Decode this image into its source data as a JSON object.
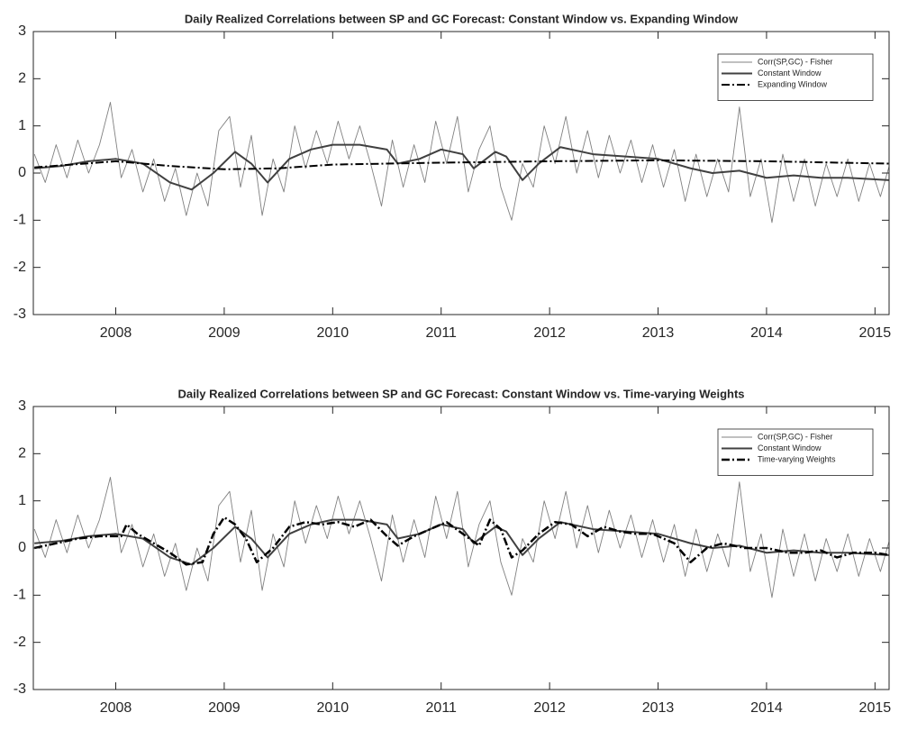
{
  "chart_data": [
    {
      "type": "line",
      "title": "Daily Realized Correlations between SP and GC Forecast: Constant Window vs. Expanding Window",
      "xlim": [
        2007.24,
        2015.13
      ],
      "xticks": [
        2008,
        2009,
        2010,
        2011,
        2012,
        2013,
        2014,
        2015
      ],
      "ylim": [
        -3,
        3
      ],
      "yticks": [
        -3,
        -2,
        -1,
        0,
        1,
        2,
        3
      ],
      "legend": "upper right",
      "series": [
        {
          "name": "Corr(SP,GC) - Fisher",
          "color": "#808080",
          "style": "solid",
          "width": 0.9,
          "x": [
            2007.25,
            2007.35,
            2007.45,
            2007.55,
            2007.65,
            2007.75,
            2007.85,
            2007.95,
            2008.05,
            2008.15,
            2008.25,
            2008.35,
            2008.45,
            2008.55,
            2008.65,
            2008.75,
            2008.85,
            2008.95,
            2009.05,
            2009.15,
            2009.25,
            2009.35,
            2009.45,
            2009.55,
            2009.65,
            2009.75,
            2009.85,
            2009.95,
            2010.05,
            2010.15,
            2010.25,
            2010.35,
            2010.45,
            2010.55,
            2010.65,
            2010.75,
            2010.85,
            2010.95,
            2011.05,
            2011.15,
            2011.25,
            2011.35,
            2011.45,
            2011.55,
            2011.65,
            2011.75,
            2011.85,
            2011.95,
            2012.05,
            2012.15,
            2012.25,
            2012.35,
            2012.45,
            2012.55,
            2012.65,
            2012.75,
            2012.85,
            2012.95,
            2013.05,
            2013.15,
            2013.25,
            2013.35,
            2013.45,
            2013.55,
            2013.65,
            2013.75,
            2013.85,
            2013.95,
            2014.05,
            2014.15,
            2014.25,
            2014.35,
            2014.45,
            2014.55,
            2014.65,
            2014.75,
            2014.85,
            2014.95,
            2015.05,
            2015.15
          ],
          "values": [
            0.4,
            -0.2,
            0.6,
            -0.1,
            0.7,
            0.0,
            0.6,
            1.5,
            -0.1,
            0.5,
            -0.4,
            0.3,
            -0.6,
            0.1,
            -0.9,
            0.0,
            -0.7,
            0.9,
            1.2,
            -0.3,
            0.8,
            -0.9,
            0.3,
            -0.4,
            1.0,
            0.1,
            0.9,
            0.2,
            1.1,
            0.3,
            1.0,
            0.2,
            -0.7,
            0.7,
            -0.3,
            0.6,
            -0.2,
            1.1,
            0.2,
            1.2,
            -0.4,
            0.5,
            1.0,
            -0.3,
            -1.0,
            0.2,
            -0.3,
            1.0,
            0.2,
            1.2,
            0.0,
            0.9,
            -0.1,
            0.8,
            0.0,
            0.7,
            -0.2,
            0.6,
            -0.3,
            0.5,
            -0.6,
            0.4,
            -0.5,
            0.3,
            -0.4,
            1.4,
            -0.5,
            0.3,
            -1.05,
            0.4,
            -0.6,
            0.3,
            -0.7,
            0.2,
            -0.5,
            0.3,
            -0.6,
            0.2,
            -0.5,
            0.3
          ]
        },
        {
          "name": "Constant Window",
          "color": "#404040",
          "style": "solid",
          "width": 2,
          "x": [
            2007.25,
            2007.5,
            2007.75,
            2008,
            2008.25,
            2008.5,
            2008.7,
            2008.9,
            2009.1,
            2009.25,
            2009.4,
            2009.6,
            2009.8,
            2010,
            2010.25,
            2010.5,
            2010.6,
            2010.8,
            2011,
            2011.2,
            2011.3,
            2011.5,
            2011.6,
            2011.75,
            2011.9,
            2012.1,
            2012.4,
            2012.7,
            2013,
            2013.3,
            2013.5,
            2013.75,
            2014,
            2014.25,
            2014.5,
            2014.75,
            2015.13
          ],
          "values": [
            0.1,
            0.15,
            0.25,
            0.3,
            0.2,
            -0.2,
            -0.35,
            0.0,
            0.45,
            0.2,
            -0.2,
            0.3,
            0.5,
            0.6,
            0.6,
            0.5,
            0.2,
            0.3,
            0.5,
            0.4,
            0.1,
            0.45,
            0.35,
            -0.15,
            0.2,
            0.55,
            0.4,
            0.35,
            0.3,
            0.1,
            0.0,
            0.05,
            -0.1,
            -0.05,
            -0.1,
            -0.1,
            -0.15
          ]
        },
        {
          "name": "Expanding Window",
          "color": "#000000",
          "style": "dashdot",
          "width": 2,
          "x": [
            2007.25,
            2008,
            2008.5,
            2009,
            2009.5,
            2010,
            2011,
            2012,
            2013,
            2014,
            2015.13
          ],
          "values": [
            0.12,
            0.25,
            0.15,
            0.08,
            0.1,
            0.18,
            0.22,
            0.25,
            0.27,
            0.25,
            0.2
          ]
        }
      ]
    },
    {
      "type": "line",
      "title": "Daily Realized Correlations between SP and GC Forecast: Constant Window vs. Time-varying Weights",
      "xlim": [
        2007.24,
        2015.13
      ],
      "xticks": [
        2008,
        2009,
        2010,
        2011,
        2012,
        2013,
        2014,
        2015
      ],
      "ylim": [
        -3,
        3
      ],
      "yticks": [
        -3,
        -2,
        -1,
        0,
        1,
        2,
        3
      ],
      "legend": "upper right",
      "series": [
        {
          "name": "Corr(SP,GC) - Fisher",
          "color": "#808080",
          "style": "solid",
          "width": 0.9,
          "x": [
            2007.25,
            2007.35,
            2007.45,
            2007.55,
            2007.65,
            2007.75,
            2007.85,
            2007.95,
            2008.05,
            2008.15,
            2008.25,
            2008.35,
            2008.45,
            2008.55,
            2008.65,
            2008.75,
            2008.85,
            2008.95,
            2009.05,
            2009.15,
            2009.25,
            2009.35,
            2009.45,
            2009.55,
            2009.65,
            2009.75,
            2009.85,
            2009.95,
            2010.05,
            2010.15,
            2010.25,
            2010.35,
            2010.45,
            2010.55,
            2010.65,
            2010.75,
            2010.85,
            2010.95,
            2011.05,
            2011.15,
            2011.25,
            2011.35,
            2011.45,
            2011.55,
            2011.65,
            2011.75,
            2011.85,
            2011.95,
            2012.05,
            2012.15,
            2012.25,
            2012.35,
            2012.45,
            2012.55,
            2012.65,
            2012.75,
            2012.85,
            2012.95,
            2013.05,
            2013.15,
            2013.25,
            2013.35,
            2013.45,
            2013.55,
            2013.65,
            2013.75,
            2013.85,
            2013.95,
            2014.05,
            2014.15,
            2014.25,
            2014.35,
            2014.45,
            2014.55,
            2014.65,
            2014.75,
            2014.85,
            2014.95,
            2015.05,
            2015.15
          ],
          "values": [
            0.4,
            -0.2,
            0.6,
            -0.1,
            0.7,
            0.0,
            0.6,
            1.5,
            -0.1,
            0.5,
            -0.4,
            0.3,
            -0.6,
            0.1,
            -0.9,
            0.0,
            -0.7,
            0.9,
            1.2,
            -0.3,
            0.8,
            -0.9,
            0.3,
            -0.4,
            1.0,
            0.1,
            0.9,
            0.2,
            1.1,
            0.3,
            1.0,
            0.2,
            -0.7,
            0.7,
            -0.3,
            0.6,
            -0.2,
            1.1,
            0.2,
            1.2,
            -0.4,
            0.5,
            1.0,
            -0.3,
            -1.0,
            0.2,
            -0.3,
            1.0,
            0.2,
            1.2,
            0.0,
            0.9,
            -0.1,
            0.8,
            0.0,
            0.7,
            -0.2,
            0.6,
            -0.3,
            0.5,
            -0.6,
            0.4,
            -0.5,
            0.3,
            -0.4,
            1.4,
            -0.5,
            0.3,
            -1.05,
            0.4,
            -0.6,
            0.3,
            -0.7,
            0.2,
            -0.5,
            0.3,
            -0.6,
            0.2,
            -0.5,
            0.3
          ]
        },
        {
          "name": "Constant Window",
          "color": "#404040",
          "style": "solid",
          "width": 2,
          "x": [
            2007.25,
            2007.5,
            2007.75,
            2008,
            2008.25,
            2008.5,
            2008.7,
            2008.9,
            2009.1,
            2009.25,
            2009.4,
            2009.6,
            2009.8,
            2010,
            2010.25,
            2010.5,
            2010.6,
            2010.8,
            2011,
            2011.2,
            2011.3,
            2011.5,
            2011.6,
            2011.75,
            2011.9,
            2012.1,
            2012.4,
            2012.7,
            2013,
            2013.3,
            2013.5,
            2013.75,
            2014,
            2014.25,
            2014.5,
            2014.75,
            2015.13
          ],
          "values": [
            0.1,
            0.15,
            0.25,
            0.3,
            0.2,
            -0.2,
            -0.35,
            0.0,
            0.45,
            0.2,
            -0.2,
            0.3,
            0.5,
            0.6,
            0.6,
            0.5,
            0.2,
            0.3,
            0.5,
            0.4,
            0.1,
            0.45,
            0.35,
            -0.15,
            0.2,
            0.55,
            0.4,
            0.35,
            0.3,
            0.1,
            0.0,
            0.05,
            -0.1,
            -0.05,
            -0.1,
            -0.1,
            -0.15
          ]
        },
        {
          "name": "Time-varying Weights",
          "color": "#000000",
          "style": "dashdot",
          "width": 2.5,
          "x": [
            2007.25,
            2007.45,
            2007.65,
            2007.85,
            2008.05,
            2008.1,
            2008.2,
            2008.35,
            2008.5,
            2008.65,
            2008.8,
            2008.9,
            2009.0,
            2009.1,
            2009.2,
            2009.3,
            2009.45,
            2009.6,
            2009.75,
            2009.9,
            2010.05,
            2010.2,
            2010.35,
            2010.5,
            2010.6,
            2010.75,
            2010.9,
            2011.05,
            2011.2,
            2011.35,
            2011.45,
            2011.55,
            2011.65,
            2011.75,
            2011.9,
            2012.05,
            2012.2,
            2012.35,
            2012.5,
            2012.65,
            2012.8,
            2012.95,
            2013.15,
            2013.3,
            2013.45,
            2013.6,
            2013.8,
            2014.0,
            2014.2,
            2014.35,
            2014.5,
            2014.65,
            2014.8,
            2015.0,
            2015.13
          ],
          "values": [
            0.0,
            0.1,
            0.2,
            0.25,
            0.25,
            0.5,
            0.3,
            0.1,
            -0.1,
            -0.35,
            -0.3,
            0.3,
            0.65,
            0.5,
            0.2,
            -0.3,
            0.0,
            0.45,
            0.55,
            0.5,
            0.55,
            0.45,
            0.6,
            0.25,
            0.05,
            0.25,
            0.4,
            0.55,
            0.3,
            0.05,
            0.6,
            0.4,
            -0.2,
            -0.05,
            0.3,
            0.55,
            0.5,
            0.25,
            0.45,
            0.35,
            0.3,
            0.3,
            0.1,
            -0.3,
            0.0,
            0.1,
            0.0,
            0.0,
            -0.1,
            -0.1,
            -0.05,
            -0.2,
            -0.1,
            -0.1,
            -0.15
          ]
        }
      ]
    }
  ]
}
